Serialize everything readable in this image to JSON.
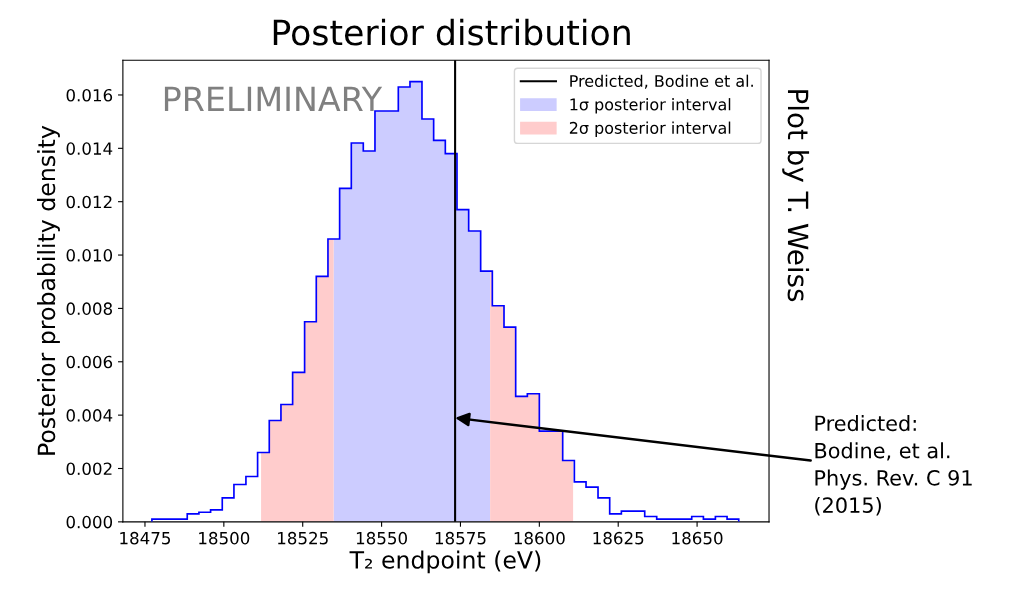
{
  "chart_data": {
    "type": "histogram",
    "title": "Posterior distribution",
    "xlabel": "T₂ endpoint (eV)",
    "ylabel": "Posterior probability density",
    "bins": [
      18477.2,
      18480.9,
      18484.6,
      18488.4,
      18492.1,
      18495.8,
      18499.5,
      18503.2,
      18507.0,
      18510.7,
      18514.4,
      18518.1,
      18521.8,
      18525.6,
      18529.3,
      18533.0,
      18536.7,
      18540.4,
      18544.2,
      18547.9,
      18551.6,
      18555.3,
      18559.0,
      18562.8,
      18566.5,
      18570.2,
      18573.9,
      18577.6,
      18581.4,
      18585.1,
      18588.8,
      18592.5,
      18596.2,
      18600.0,
      18603.7,
      18607.4,
      18611.1,
      18614.8,
      18618.6,
      18622.3,
      18626.0,
      18629.7,
      18633.4,
      18637.2,
      18640.9,
      18644.6,
      18648.3,
      18652.0,
      18655.8,
      18659.5,
      18663.2
    ],
    "values": [
      0.0001,
      0.0001,
      0.0001,
      0.0003,
      0.00036,
      0.00045,
      0.0009,
      0.0014,
      0.0017,
      0.0026,
      0.0038,
      0.0044,
      0.0056,
      0.0075,
      0.0092,
      0.0106,
      0.0125,
      0.0142,
      0.0139,
      0.0154,
      0.0154,
      0.0163,
      0.0165,
      0.0151,
      0.0143,
      0.0138,
      0.0117,
      0.0109,
      0.0094,
      0.0081,
      0.0073,
      0.0047,
      0.0048,
      0.0034,
      0.0034,
      0.0023,
      0.0015,
      0.0013,
      0.0009,
      0.0003,
      0.0004,
      0.0004,
      0.0002,
      0.0001,
      0.0001,
      0.0001,
      0.0002,
      0.0001,
      0.0002,
      0.0001
    ],
    "color": "#0000ff",
    "xlim": [
      18468,
      18672.8
    ],
    "xticks": [
      18475,
      18500,
      18525,
      18550,
      18575,
      18600,
      18625,
      18650
    ],
    "ylim": [
      0,
      0.0173
    ],
    "yticks": [
      {
        "value": 0,
        "label": "0.000"
      },
      {
        "value": 0.002,
        "label": "0.002"
      },
      {
        "value": 0.004,
        "label": "0.004"
      },
      {
        "value": 0.006,
        "label": "0.006"
      },
      {
        "value": 0.008,
        "label": "0.008"
      },
      {
        "value": 0.01,
        "label": "0.010"
      },
      {
        "value": 0.012,
        "label": "0.012"
      },
      {
        "value": 0.014,
        "label": "0.014"
      },
      {
        "value": 0.016,
        "label": "0.016"
      }
    ],
    "series": [
      {
        "type": "line",
        "name": "Predicted, Bodine et al.",
        "color": "#000000",
        "x": [
          18573.3,
          18573.3
        ],
        "values": [
          0,
          0.0173
        ]
      },
      {
        "type": "area",
        "name": "1σ posterior interval",
        "color": "#ccccff",
        "x": [
          18534.8,
          18536.7,
          18536.7,
          18540.4,
          18540.4,
          18544.2,
          18544.2,
          18547.9,
          18547.9,
          18555.3,
          18555.3,
          18559.0,
          18559.0,
          18562.8,
          18562.8,
          18566.5,
          18566.5,
          18570.2,
          18570.2,
          18573.9,
          18573.9,
          18577.6,
          18577.6,
          18581.4,
          18581.4,
          18584.4
        ],
        "values": [
          0.0106,
          0.0106,
          0.0125,
          0.0125,
          0.0142,
          0.0142,
          0.0139,
          0.0139,
          0.0154,
          0.0154,
          0.0163,
          0.0163,
          0.0165,
          0.0165,
          0.0151,
          0.0151,
          0.0143,
          0.0143,
          0.0138,
          0.0138,
          0.0117,
          0.0117,
          0.0109,
          0.0109,
          0.0094,
          0.0094
        ]
      },
      {
        "type": "area",
        "name": "2σ posterior interval",
        "color": "#ffcccc",
        "x": [
          18511.8,
          18514.4,
          18514.4,
          18518.1,
          18518.1,
          18521.8,
          18521.8,
          18525.6,
          18525.6,
          18529.3,
          18529.3,
          18533.0,
          18533.0,
          18534.8,
          null,
          18584.4,
          18585.1,
          18585.1,
          18588.8,
          18588.8,
          18592.5,
          18592.5,
          18596.2,
          18596.2,
          18600.0,
          18600.0,
          18607.4,
          18607.4,
          18610.7
        ],
        "values": [
          0.0026,
          0.0026,
          0.0038,
          0.0038,
          0.0044,
          0.0044,
          0.0056,
          0.0056,
          0.0075,
          0.0075,
          0.0092,
          0.0092,
          0.0106,
          0.0106,
          null,
          0.0094,
          0.0094,
          0.0081,
          0.0081,
          0.0073,
          0.0073,
          0.0047,
          0.0047,
          0.0048,
          0.0048,
          0.0034,
          0.0034,
          0.0023,
          0.0023
        ]
      }
    ],
    "annotations": [
      "PRELIMINARY",
      "Plot by T. Weiss",
      {
        "text": "Predicted:\nBodine, et al.\nPhys. Rev. C 91\n(2015)",
        "x": 18573.3,
        "y": 0.0039
      }
    ],
    "legend": "top right",
    "grid": false
  }
}
